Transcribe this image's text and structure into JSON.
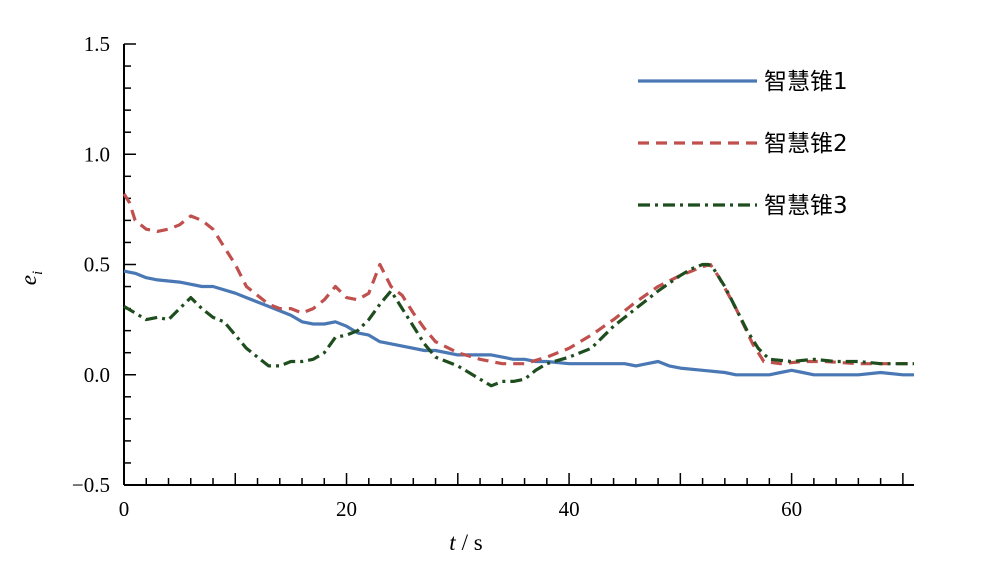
{
  "chart_data": {
    "type": "line",
    "xlabel_var": "t",
    "xlabel_unit": "/ s",
    "ylabel_var": "e",
    "ylabel_sub": "i",
    "xlim": [
      0,
      71
    ],
    "ylim": [
      -0.5,
      1.5
    ],
    "x_ticks": [
      0,
      20,
      40,
      60
    ],
    "x_tick_labels": [
      "0",
      "20",
      "40",
      "60"
    ],
    "y_ticks": [
      -0.5,
      0.0,
      0.5,
      1.0,
      1.5
    ],
    "y_tick_labels": [
      "−0.5",
      "0.0",
      "0.5",
      "1.0",
      "1.5"
    ],
    "grid": false,
    "legend_position": "top-right",
    "series": [
      {
        "name": "智慧锥1",
        "color": "#4a78b5",
        "dash": "solid",
        "x": [
          0,
          1,
          2,
          3,
          5,
          7,
          8,
          10,
          11,
          12,
          13,
          15,
          16,
          17,
          18,
          19,
          20,
          21,
          22,
          23,
          25,
          27,
          28,
          30,
          31,
          33,
          34,
          35,
          36,
          37,
          38,
          40,
          42,
          44,
          45,
          46,
          47,
          48,
          49,
          50,
          52,
          54,
          55,
          56,
          57,
          58,
          59,
          60,
          61,
          62,
          64,
          66,
          68,
          70,
          71
        ],
        "y": [
          0.47,
          0.46,
          0.44,
          0.43,
          0.42,
          0.4,
          0.4,
          0.37,
          0.35,
          0.33,
          0.31,
          0.27,
          0.24,
          0.23,
          0.23,
          0.24,
          0.22,
          0.19,
          0.18,
          0.15,
          0.13,
          0.11,
          0.11,
          0.09,
          0.09,
          0.09,
          0.08,
          0.07,
          0.07,
          0.06,
          0.06,
          0.05,
          0.05,
          0.05,
          0.05,
          0.04,
          0.05,
          0.06,
          0.04,
          0.03,
          0.02,
          0.01,
          0.0,
          0.0,
          0.0,
          0.0,
          0.01,
          0.02,
          0.01,
          0.0,
          0.0,
          0.0,
          0.01,
          0.0,
          0.0
        ]
      },
      {
        "name": "智慧锥2",
        "color": "#c0504d",
        "dash": "dashed",
        "x": [
          0,
          0.5,
          1,
          2,
          3,
          4,
          5,
          6,
          7,
          8,
          9,
          10,
          11,
          12,
          13,
          14,
          15,
          16,
          17,
          18,
          19,
          20,
          21,
          22,
          23,
          24,
          25,
          26,
          27,
          28,
          30,
          32,
          34,
          36,
          38,
          40,
          42,
          44,
          46,
          48,
          50,
          51,
          52,
          52.7,
          53.5,
          55,
          56.5,
          57.5,
          59,
          61,
          63,
          66,
          68,
          71
        ],
        "y": [
          0.82,
          0.78,
          0.7,
          0.66,
          0.65,
          0.66,
          0.68,
          0.72,
          0.7,
          0.66,
          0.58,
          0.5,
          0.4,
          0.36,
          0.32,
          0.3,
          0.3,
          0.28,
          0.3,
          0.34,
          0.4,
          0.35,
          0.34,
          0.37,
          0.5,
          0.4,
          0.36,
          0.28,
          0.21,
          0.15,
          0.1,
          0.07,
          0.05,
          0.05,
          0.08,
          0.12,
          0.18,
          0.25,
          0.33,
          0.4,
          0.45,
          0.47,
          0.49,
          0.5,
          0.44,
          0.3,
          0.14,
          0.06,
          0.05,
          0.06,
          0.06,
          0.05,
          0.05,
          0.05
        ]
      },
      {
        "name": "智慧锥3",
        "color": "#1e4d1e",
        "dash": "dashdot",
        "x": [
          0,
          1,
          2,
          3,
          4,
          5,
          6,
          7,
          8,
          9,
          10,
          11,
          12,
          13,
          14,
          15,
          16,
          17,
          18,
          19,
          20,
          21,
          22,
          23,
          24,
          25,
          26,
          27,
          28,
          30,
          32,
          33,
          34,
          35,
          36,
          37,
          38,
          40,
          42,
          44,
          46,
          48,
          50,
          51,
          52,
          52.5,
          53,
          54,
          55,
          56,
          57,
          58,
          60,
          62,
          64,
          66,
          68,
          71
        ],
        "y": [
          0.31,
          0.28,
          0.25,
          0.26,
          0.25,
          0.3,
          0.35,
          0.3,
          0.26,
          0.24,
          0.18,
          0.12,
          0.08,
          0.04,
          0.04,
          0.06,
          0.06,
          0.07,
          0.1,
          0.17,
          0.18,
          0.2,
          0.25,
          0.32,
          0.38,
          0.3,
          0.22,
          0.14,
          0.08,
          0.04,
          -0.02,
          -0.05,
          -0.03,
          -0.03,
          -0.02,
          0.02,
          0.05,
          0.08,
          0.12,
          0.22,
          0.3,
          0.38,
          0.45,
          0.48,
          0.5,
          0.5,
          0.48,
          0.4,
          0.3,
          0.2,
          0.12,
          0.07,
          0.06,
          0.07,
          0.06,
          0.06,
          0.05,
          0.05
        ]
      }
    ]
  }
}
